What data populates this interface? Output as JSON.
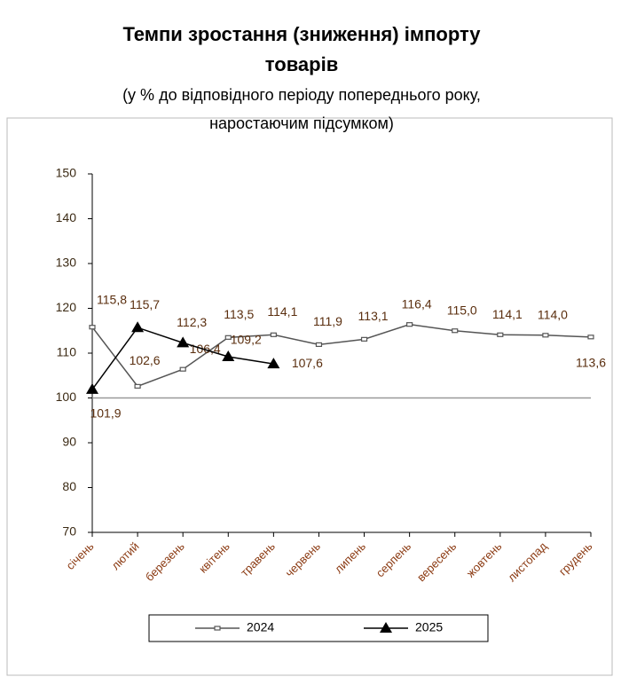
{
  "chart_data": {
    "type": "line",
    "title": "Темпи зростання (зниження) імпорту товарів",
    "subtitle": "(у % до відповідного періоду попереднього року, наростаючим підсумком)",
    "categories": [
      "січень",
      "лютий",
      "березень",
      "квітень",
      "травень",
      "червень",
      "липень",
      "серпень",
      "вересень",
      "жовтень",
      "листопад",
      "грудень"
    ],
    "series": [
      {
        "name": "2024",
        "color": "#555555",
        "marker": "square",
        "values": [
          115.8,
          102.6,
          106.4,
          113.5,
          114.1,
          111.9,
          113.1,
          116.4,
          115.0,
          114.1,
          114.0,
          113.6
        ],
        "value_labels": [
          "115,8",
          "102,6",
          "106,4",
          "113,5",
          "114,1",
          "111,9",
          "113,1",
          "116,4",
          "115,0",
          "114,1",
          "114,0",
          "113,6"
        ]
      },
      {
        "name": "2025",
        "color": "#000000",
        "marker": "triangle",
        "values": [
          101.9,
          115.7,
          112.3,
          109.2,
          107.6,
          null,
          null,
          null,
          null,
          null,
          null,
          null
        ],
        "value_labels": [
          "101,9",
          "115,7",
          "112,3",
          "109,2",
          "107,6",
          null,
          null,
          null,
          null,
          null,
          null,
          null
        ]
      }
    ],
    "ylim": [
      70,
      150
    ],
    "yticks": [
      70,
      80,
      90,
      100,
      110,
      120,
      130,
      140,
      150
    ],
    "reference_line": 100,
    "legend": "bottom"
  }
}
